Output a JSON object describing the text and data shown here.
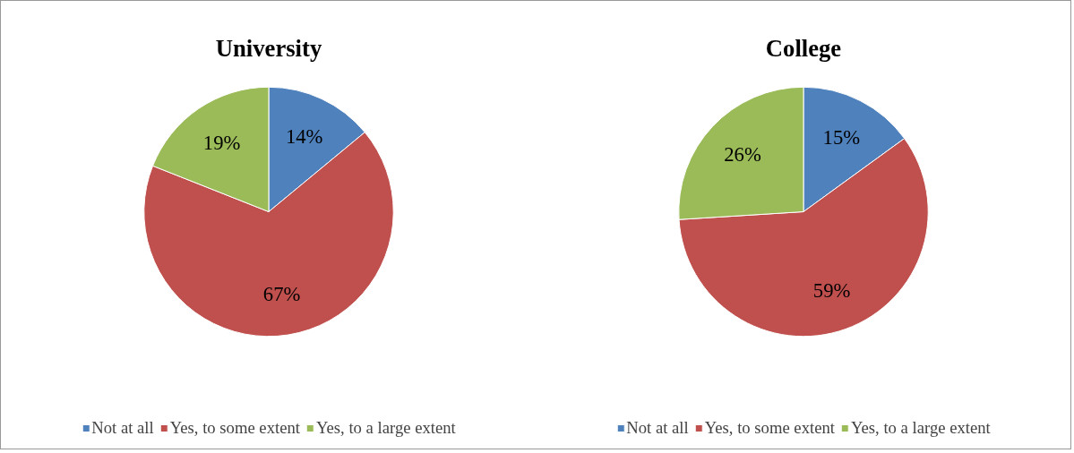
{
  "chart_data": [
    {
      "type": "pie",
      "title": "University",
      "categories": [
        "Not at all",
        "Yes, to some extent",
        "Yes, to a large extent"
      ],
      "values": [
        14,
        67,
        19
      ],
      "colors": [
        "#4f81bd",
        "#c0504d",
        "#9bbb59"
      ],
      "value_labels": [
        "14%",
        "67%",
        "19%"
      ],
      "legend": "bottom"
    },
    {
      "type": "pie",
      "title": "College",
      "categories": [
        "Not at all",
        "Yes, to some extent",
        "Yes, to a large extent"
      ],
      "values": [
        15,
        59,
        26
      ],
      "colors": [
        "#4f81bd",
        "#c0504d",
        "#9bbb59"
      ],
      "value_labels": [
        "15%",
        "59%",
        "26%"
      ],
      "legend": "bottom"
    }
  ]
}
